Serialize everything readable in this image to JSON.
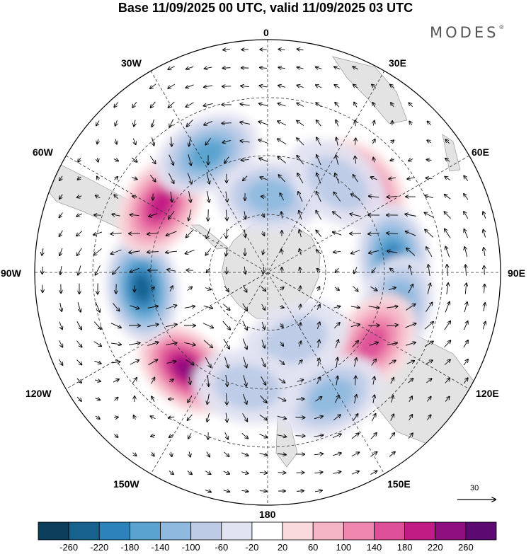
{
  "title": "Base 11/09/2025 00 UTC, valid 11/09/2025 03 UTC",
  "brand": {
    "name": "MODES",
    "mark": "®"
  },
  "longitude_labels": {
    "lon_0": "0",
    "lon_30e": "30E",
    "lon_60e": "60E",
    "lon_90e": "90E",
    "lon_120e": "120E",
    "lon_150e": "150E",
    "lon_180": "180",
    "lon_150w": "150W",
    "lon_120w": "120W",
    "lon_90w": "90W",
    "lon_60w": "60W",
    "lon_30w": "30W"
  },
  "colorbar": {
    "colors": [
      "#0b3e5b",
      "#16618e",
      "#2d82bb",
      "#5aa2cf",
      "#8fb9df",
      "#bdcbe7",
      "#e2e3f1",
      "#ffffff",
      "#fadadd",
      "#f5b5c7",
      "#ee86ad",
      "#dd4f97",
      "#c11c84",
      "#8f0f80",
      "#5c0a72"
    ],
    "tick_labels": [
      "-260",
      "-220",
      "-180",
      "-140",
      "-100",
      "-60",
      "-20",
      "20",
      "60",
      "100",
      "140",
      "180",
      "220",
      "260"
    ]
  },
  "vector_reference": {
    "label": "30"
  },
  "field_anomalies": [
    {
      "lon": -140,
      "lat": -52,
      "value": 240
    },
    {
      "lon": -97,
      "lat": -52,
      "value": -220
    },
    {
      "lon": -58,
      "lat": -52,
      "value": 210
    },
    {
      "lon": 47,
      "lat": -52,
      "value": 190
    },
    {
      "lon": 84,
      "lat": -52,
      "value": -190
    },
    {
      "lon": 106,
      "lat": -50,
      "value": -170
    },
    {
      "lon": 124,
      "lat": -52,
      "value": 140
    },
    {
      "lon": 153,
      "lat": -48,
      "value": -110
    },
    {
      "lon": 158,
      "lat": -68,
      "value": -90
    },
    {
      "lon": -27,
      "lat": -50,
      "value": -140
    },
    {
      "lon": 2,
      "lat": -67,
      "value": -130
    },
    {
      "lon": 38,
      "lat": -56,
      "value": -60
    },
    {
      "lon": -170,
      "lat": -55,
      "value": -70
    }
  ]
}
